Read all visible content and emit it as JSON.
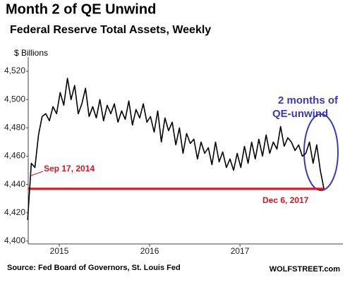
{
  "chart_data": {
    "type": "line",
    "title": "Month 2 of QE Unwind",
    "subtitle": "Federal Reserve Total Assets, Weekly",
    "y_label": "$ Billions",
    "source": "Source: Fed Board of Governors, St. Louis Fed",
    "credit": "WOLFSTREET.com",
    "annotations": [
      "Sep 17, 2014",
      "Dec 6, 2017",
      "2 months of",
      "QE-unwind"
    ],
    "reference_line": {
      "value": 4437,
      "color": "#e0141e"
    },
    "x": [
      2014.65,
      2014.69,
      2014.73,
      2014.77,
      2014.81,
      2014.85,
      2014.89,
      2014.93,
      2014.97,
      2015.01,
      2015.05,
      2015.09,
      2015.13,
      2015.17,
      2015.21,
      2015.25,
      2015.29,
      2015.33,
      2015.37,
      2015.41,
      2015.45,
      2015.49,
      2015.53,
      2015.57,
      2015.61,
      2015.65,
      2015.69,
      2015.73,
      2015.77,
      2015.81,
      2015.85,
      2015.89,
      2015.93,
      2015.97,
      2016.01,
      2016.05,
      2016.09,
      2016.13,
      2016.17,
      2016.21,
      2016.25,
      2016.29,
      2016.33,
      2016.37,
      2016.41,
      2016.45,
      2016.49,
      2016.53,
      2016.57,
      2016.61,
      2016.65,
      2016.69,
      2016.73,
      2016.77,
      2016.81,
      2016.85,
      2016.89,
      2016.93,
      2016.97,
      2017.01,
      2017.05,
      2017.09,
      2017.13,
      2017.17,
      2017.21,
      2017.25,
      2017.29,
      2017.33,
      2017.37,
      2017.41,
      2017.45,
      2017.49,
      2017.53,
      2017.57,
      2017.61,
      2017.65,
      2017.69,
      2017.73,
      2017.77,
      2017.81,
      2017.85,
      2017.89,
      2017.93
    ],
    "series": [
      {
        "name": "Federal Reserve Total Assets",
        "color": "#000000",
        "values": [
          4415,
          4455,
          4452,
          4475,
          4488,
          4490,
          4485,
          4495,
          4490,
          4505,
          4496,
          4515,
          4500,
          4510,
          4490,
          4497,
          4508,
          4488,
          4495,
          4487,
          4500,
          4485,
          4496,
          4490,
          4497,
          4484,
          4492,
          4486,
          4499,
          4482,
          4493,
          4487,
          4497,
          4484,
          4488,
          4477,
          4492,
          4470,
          4487,
          4478,
          4484,
          4468,
          4480,
          4462,
          4476,
          4469,
          4472,
          4458,
          4470,
          4462,
          4466,
          4454,
          4470,
          4456,
          4463,
          4452,
          4458,
          4450,
          4462,
          4452,
          4467,
          4455,
          4470,
          4458,
          4472,
          4460,
          4475,
          4462,
          4470,
          4465,
          4481,
          4467,
          4473,
          4470,
          4464,
          4468,
          4460,
          4462,
          4470,
          4455,
          4468,
          4450,
          4437
        ]
      }
    ],
    "xlim": [
      2014.656,
      2018.14
    ],
    "xticks": [
      2015,
      2016,
      2017
    ],
    "ylim": [
      4398,
      4530
    ],
    "yticks": [
      {
        "value": 4400,
        "label": "4,400"
      },
      {
        "value": 4420,
        "label": "4,420"
      },
      {
        "value": 4440,
        "label": "4,440"
      },
      {
        "value": 4460,
        "label": "4,460"
      },
      {
        "value": 4480,
        "label": "4,480"
      },
      {
        "value": 4500,
        "label": "4,500"
      },
      {
        "value": 4520,
        "label": "4,520"
      }
    ],
    "grid": false
  }
}
